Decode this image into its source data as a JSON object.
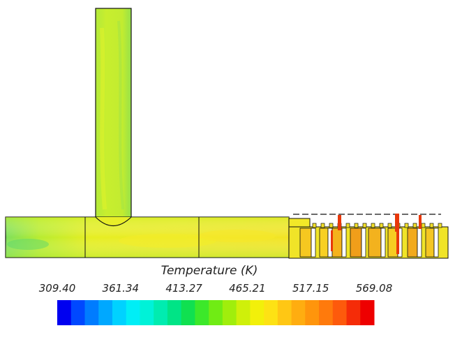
{
  "legend": {
    "title": "Temperature (K)",
    "ticks": [
      "309.40",
      "361.34",
      "413.27",
      "465.21",
      "517.15",
      "569.08"
    ],
    "colors": [
      "#0000f0",
      "#0048ff",
      "#007cff",
      "#00a8ff",
      "#00d2ff",
      "#00eef6",
      "#00f2d8",
      "#00ecb0",
      "#00e486",
      "#10e050",
      "#3ce82a",
      "#70ec14",
      "#a0ee0c",
      "#cff00a",
      "#f2f00a",
      "#fde214",
      "#ffc714",
      "#ffad10",
      "#ff950c",
      "#ff7a0c",
      "#fd5a0c",
      "#f52c08",
      "#ee0000"
    ]
  },
  "field": {
    "base_color": "#c4ec2e",
    "hot_color": "#f5e62a",
    "peak_color": "#e8380a"
  }
}
